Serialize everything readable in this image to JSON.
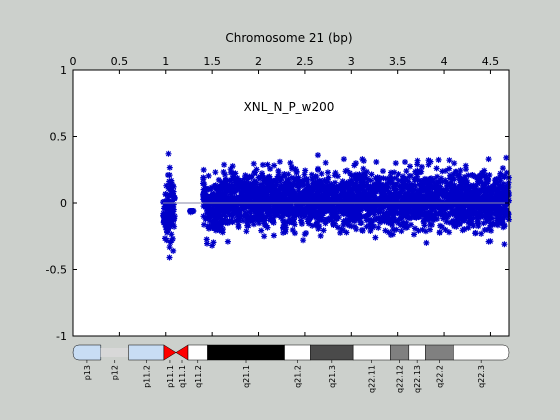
{
  "chart_data": {
    "type": "scatter",
    "title": "Chromosome 21 (bp)",
    "annotation": "XNL_N_P_w200",
    "x_unit_note": "x axis tick labels in units of 1e7 bp",
    "xlim": [
      0,
      4.7
    ],
    "ylim": [
      -1,
      1
    ],
    "x_ticks": [
      "0",
      "0.5",
      "1",
      "1.5",
      "2",
      "2.5",
      "3",
      "3.5",
      "4",
      "4.5"
    ],
    "y_ticks": [
      "1",
      "0.5",
      "0",
      "-0.5",
      "-1"
    ],
    "x_tick_values": [
      0,
      0.5,
      1,
      1.5,
      2,
      2.5,
      3,
      3.5,
      4,
      4.5
    ],
    "y_tick_values": [
      1,
      0.5,
      0,
      -0.5,
      -1
    ],
    "grid": false,
    "marker": "asterisk",
    "marker_color": "#0000c8",
    "baseline_color": "#8a8aa8",
    "segments": [
      {
        "x_start": 0.97,
        "x_end": 1.02,
        "y_min": -0.36,
        "y_max": 0.22
      },
      {
        "x_start": 1.02,
        "x_end": 1.06,
        "y_min": -0.41,
        "y_max": 0.37
      },
      {
        "x_start": 1.06,
        "x_end": 1.1,
        "y_min": -0.32,
        "y_max": 0.25
      },
      {
        "x_start": 1.26,
        "x_end": 1.3,
        "y_min": -0.06,
        "y_max": -0.06
      },
      {
        "x_start": 1.4,
        "x_end": 1.44,
        "y_min": -0.22,
        "y_max": 0.3
      },
      {
        "x_start": 1.44,
        "x_end": 1.58,
        "y_min": -0.38,
        "y_max": 0.3
      },
      {
        "x_start": 1.58,
        "x_end": 4.7,
        "y_min": -0.3,
        "y_max": 0.35
      }
    ],
    "scatter_points": [
      {
        "x": 1.03,
        "y": 0.37
      },
      {
        "x": 1.04,
        "y": -0.41
      },
      {
        "x": 1.08,
        "y": -0.36
      },
      {
        "x": 1.01,
        "y": -0.28
      },
      {
        "x": 1.27,
        "y": -0.07
      },
      {
        "x": 1.5,
        "y": -0.32
      },
      {
        "x": 2.23,
        "y": 0.31
      },
      {
        "x": 2.64,
        "y": 0.36
      },
      {
        "x": 2.92,
        "y": 0.33
      },
      {
        "x": 3.05,
        "y": 0.3
      },
      {
        "x": 3.12,
        "y": 0.33
      },
      {
        "x": 3.48,
        "y": 0.3
      },
      {
        "x": 3.71,
        "y": 0.29
      },
      {
        "x": 3.92,
        "y": 0.26
      },
      {
        "x": 4.48,
        "y": 0.33
      },
      {
        "x": 4.67,
        "y": 0.34
      },
      {
        "x": 2.48,
        "y": -0.28
      },
      {
        "x": 3.26,
        "y": -0.26
      },
      {
        "x": 3.81,
        "y": -0.3
      },
      {
        "x": 4.48,
        "y": -0.29
      },
      {
        "x": 4.65,
        "y": -0.31
      },
      {
        "x": 1.67,
        "y": -0.29
      },
      {
        "x": 2.06,
        "y": -0.25
      }
    ],
    "ideogram_bands": [
      {
        "name": "p13",
        "x_start": 0.0,
        "x_end": 0.3,
        "color": "#c8ddf4",
        "label": "p13"
      },
      {
        "name": "p12",
        "x_start": 0.3,
        "x_end": 0.6,
        "color": "#d8d8d8",
        "label": "p12"
      },
      {
        "name": "p11.2",
        "x_start": 0.6,
        "x_end": 0.98,
        "color": "#c8ddf4",
        "label": "p11.2"
      },
      {
        "name": "p11.1",
        "x_start": 0.98,
        "x_end": 1.11,
        "color": "#ff0000",
        "label": "p11.1"
      },
      {
        "name": "q11.1",
        "x_start": 1.11,
        "x_end": 1.24,
        "color": "#ff0000",
        "label": "q11.1"
      },
      {
        "name": "q11.2",
        "x_start": 1.24,
        "x_end": 1.45,
        "color": "#ffffff",
        "label": "q11.2"
      },
      {
        "name": "q21.1",
        "x_start": 1.45,
        "x_end": 2.28,
        "color": "#000000",
        "label": "q21.1"
      },
      {
        "name": "q21.2",
        "x_start": 2.28,
        "x_end": 2.56,
        "color": "#ffffff",
        "label": "q21.2"
      },
      {
        "name": "q21.3",
        "x_start": 2.56,
        "x_end": 3.02,
        "color": "#4a4a4a",
        "label": "q21.3"
      },
      {
        "name": "q22.11",
        "x_start": 3.02,
        "x_end": 3.42,
        "color": "#ffffff",
        "label": "q22.11"
      },
      {
        "name": "q22.12",
        "x_start": 3.42,
        "x_end": 3.62,
        "color": "#808080",
        "label": "q22.12"
      },
      {
        "name": "q22.13",
        "x_start": 3.62,
        "x_end": 3.8,
        "color": "#ffffff",
        "label": "q22.13"
      },
      {
        "name": "q22.2",
        "x_start": 3.8,
        "x_end": 4.1,
        "color": "#808080",
        "label": "q22.2"
      },
      {
        "name": "q22.3",
        "x_start": 4.1,
        "x_end": 4.7,
        "color": "#ffffff",
        "label": "q22.3"
      }
    ]
  }
}
